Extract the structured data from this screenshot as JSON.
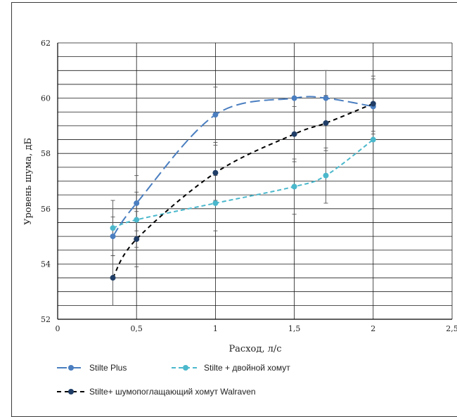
{
  "chart_data": {
    "type": "line",
    "xlabel": "Расход, л/с",
    "ylabel": "Уровень шума, дБ",
    "xlim": [
      0,
      2.5
    ],
    "ylim": [
      52,
      62
    ],
    "x_ticks": [
      "0",
      "0,5",
      "1",
      "1,5",
      "2",
      "2,5"
    ],
    "y_ticks": [
      "52",
      "54",
      "56",
      "58",
      "60",
      "62"
    ],
    "grid": true,
    "legend_position": "bottom",
    "series": [
      {
        "name": "Stilte Plus",
        "color": "#4a7ec0",
        "line_style": "long-dash",
        "x": [
          0.35,
          0.5,
          1.0,
          1.5,
          1.7,
          2.0
        ],
        "y": [
          55.0,
          56.2,
          59.4,
          60.0,
          60.0,
          59.7
        ],
        "err_low": [
          54.3,
          55.2,
          58.4,
          59.0,
          59.0,
          58.7
        ],
        "err_high": [
          55.7,
          57.2,
          60.4,
          61.0,
          61.0,
          60.7
        ]
      },
      {
        "name": "Stilte + двойной хомут",
        "color": "#4bb8cc",
        "line_style": "dash",
        "x": [
          0.35,
          0.5,
          1.0,
          1.5,
          1.7,
          2.0
        ],
        "y": [
          55.3,
          55.6,
          56.2,
          56.8,
          57.2,
          58.5
        ],
        "err_low": [
          54.3,
          54.6,
          55.2,
          55.8,
          56.2,
          57.5
        ],
        "err_high": [
          56.3,
          56.6,
          57.2,
          57.8,
          58.2,
          59.5
        ]
      },
      {
        "name": "Stilte+ шумопоглащающий хомут Walraven",
        "color": "#000000",
        "marker_color": "#1f3d66",
        "line_style": "short-dash",
        "x": [
          0.35,
          0.5,
          1.0,
          1.5,
          1.7,
          2.0
        ],
        "y": [
          53.5,
          54.9,
          57.3,
          58.7,
          59.1,
          59.8
        ],
        "err_low": [
          52.5,
          53.9,
          56.3,
          57.7,
          58.1,
          58.8
        ],
        "err_high": [
          54.5,
          55.9,
          58.3,
          59.7,
          60.1,
          60.8
        ]
      }
    ]
  }
}
